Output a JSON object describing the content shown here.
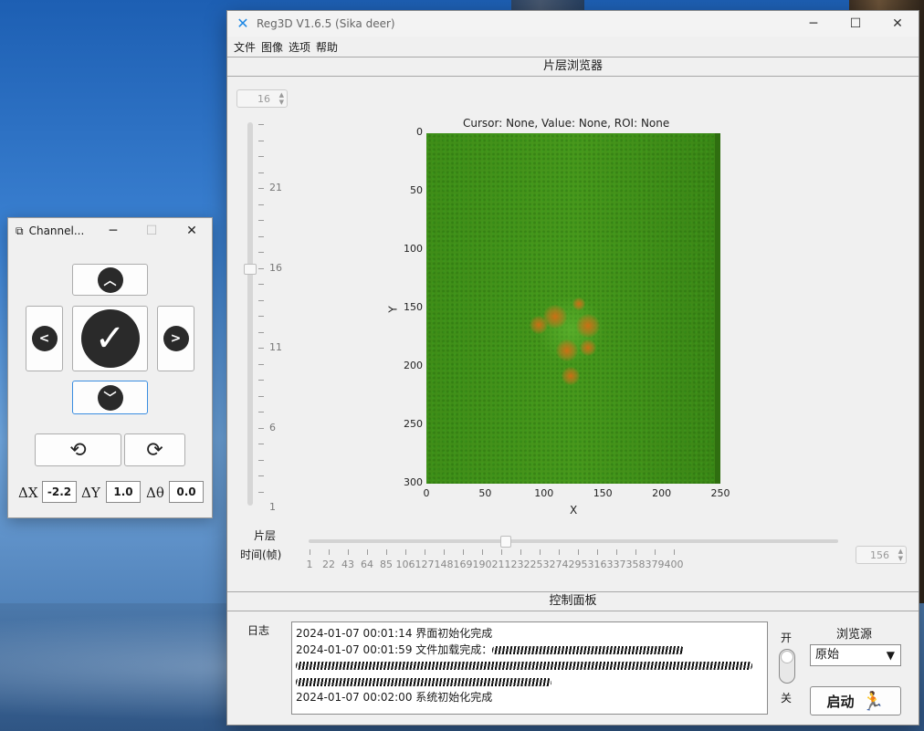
{
  "main_window": {
    "title": "Reg3D V1.6.5 (Sika deer)",
    "menu": [
      "文件",
      "图像",
      "选项",
      "帮助"
    ],
    "viewer_header": "片层浏览器",
    "slice_spin_value": "16",
    "cursor_info": "Cursor: None,   Value: None,   ROI: None",
    "vslider": {
      "labels": [
        "21",
        "16",
        "11",
        "6",
        "1"
      ],
      "value": 16
    },
    "hslider": {
      "labels": [
        "1",
        "22",
        "43",
        "64",
        "85",
        "106",
        "127",
        "148",
        "169",
        "190",
        "211",
        "232",
        "253",
        "274",
        "295",
        "316",
        "337",
        "358",
        "379",
        "400"
      ],
      "value": 156
    },
    "frame_spin_value": "156",
    "slice_label": "片层",
    "time_label": "时间(帧)",
    "control_header": "控制面板",
    "log_label": "日志",
    "log_lines": [
      "2024-01-07 00:01:14 界面初始化完成",
      "2024-01-07 00:01:59 文件加载完成：",
      "",
      "",
      "2024-01-07 00:02:00 系统初始化完成"
    ],
    "toggle_on": "开",
    "toggle_off": "关",
    "source_label": "浏览源",
    "source_value": "原始",
    "start_label": "启动"
  },
  "chart_data": {
    "type": "heatmap",
    "title": "",
    "xlabel": "X",
    "ylabel": "Y",
    "xlim": [
      0,
      250
    ],
    "ylim": [
      300,
      0
    ],
    "xticks": [
      "0",
      "50",
      "100",
      "150",
      "200",
      "250"
    ],
    "yticks": [
      "0",
      "50",
      "100",
      "150",
      "200",
      "250",
      "300"
    ]
  },
  "channel_window": {
    "title": "Channel...",
    "dx_label": "ΔX",
    "dx_value": "-2.2",
    "dy_label": "ΔY",
    "dy_value": "1.0",
    "dtheta_label": "Δθ",
    "dtheta_value": "0.0"
  },
  "icons": {
    "app": "reg3d-app-icon",
    "up": "chevron-up-icon",
    "down": "chevron-down-icon",
    "left": "chevron-left-icon",
    "right": "chevron-right-icon",
    "confirm": "checkmark-icon",
    "rotate_ccw": "rotate-ccw-icon",
    "rotate_cw": "rotate-cw-icon",
    "runner": "running-man-icon"
  },
  "colors": {
    "plot_background": "#3e8a18",
    "spot": "#d26e14",
    "runner": "#1a8ad8"
  }
}
